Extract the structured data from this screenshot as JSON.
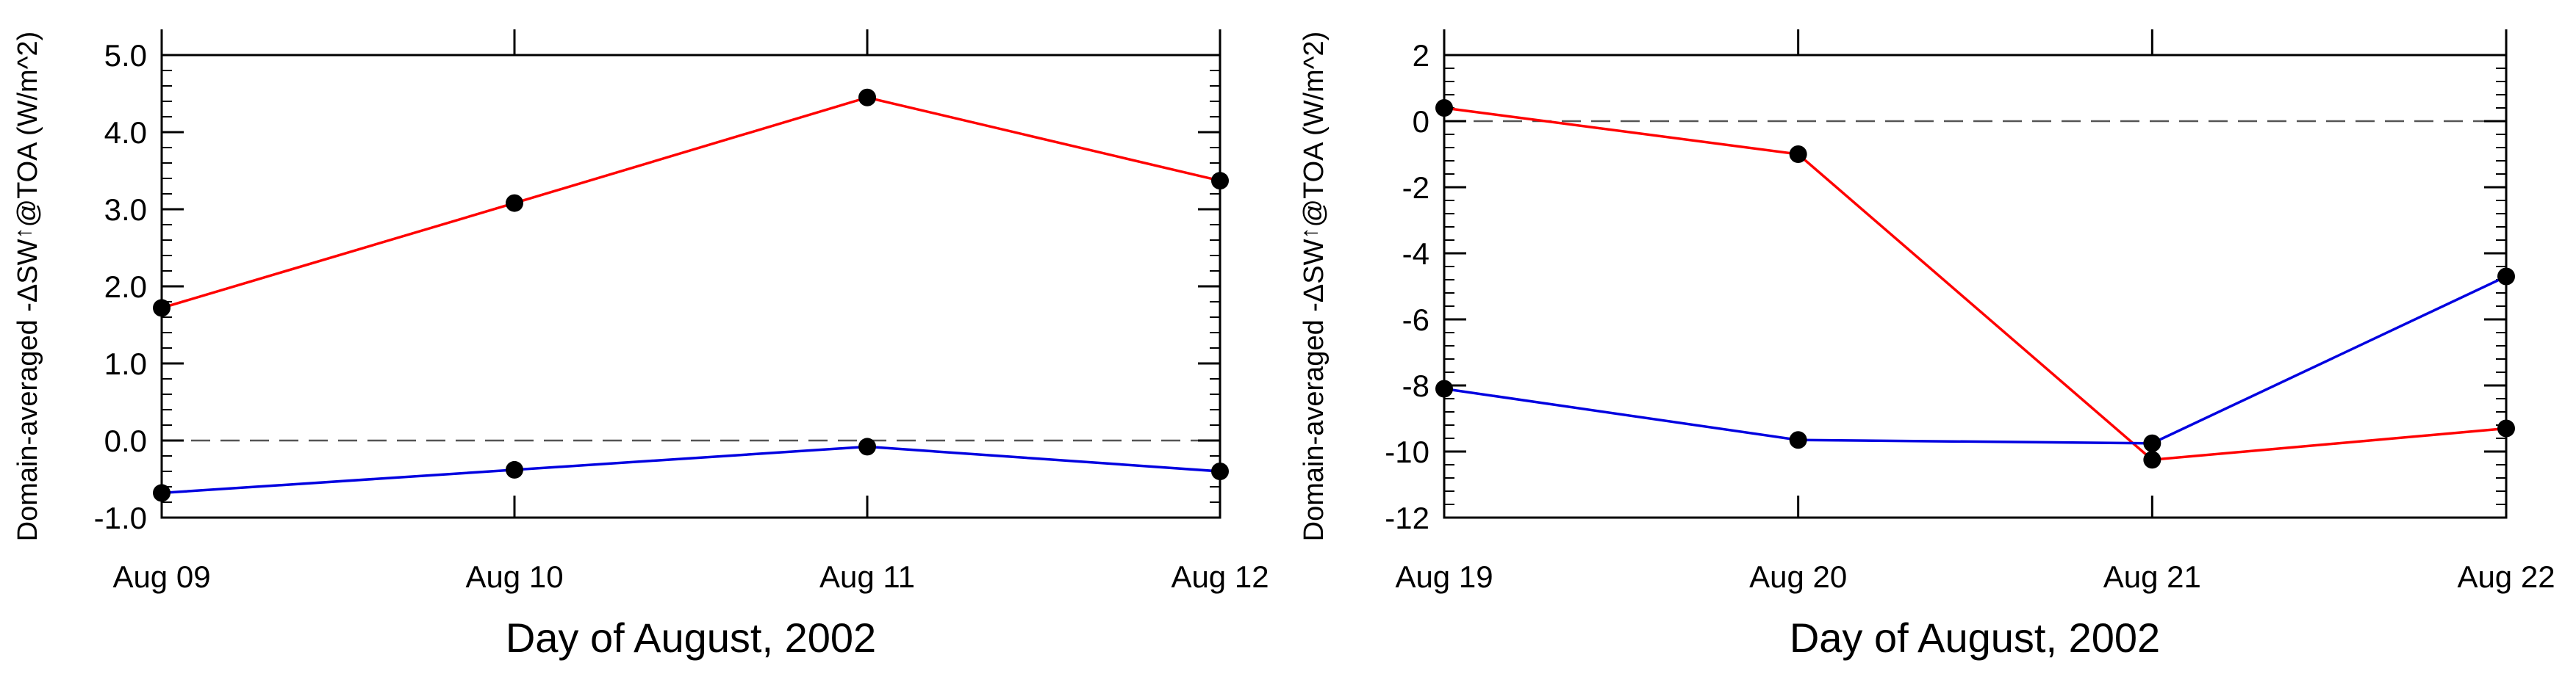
{
  "chart_data": [
    {
      "type": "line",
      "title": "",
      "xlabel": "Day of August, 2002",
      "ylabel_prefix": "Domain-averaged -ΔSW",
      "ylabel_arrow": "↑",
      "ylabel_suffix": "@TOA (W/m^2)",
      "categories": [
        "Aug 09",
        "Aug 10",
        "Aug 11",
        "Aug 12"
      ],
      "ylim": [
        -1.0,
        5.0
      ],
      "yticks": [
        -1.0,
        0.0,
        1.0,
        2.0,
        3.0,
        4.0,
        5.0
      ],
      "ytick_labels": [
        "-1.0",
        "0.0",
        "1.0",
        "2.0",
        "3.0",
        "4.0",
        "5.0"
      ],
      "minor_step": 0.2,
      "zero_line": 0.0,
      "series": [
        {
          "name": "red",
          "color": "#ff0000",
          "values": [
            1.72,
            3.08,
            4.45,
            3.37
          ]
        },
        {
          "name": "blue",
          "color": "#0000e0",
          "values": [
            -0.68,
            -0.38,
            -0.08,
            -0.4
          ]
        }
      ]
    },
    {
      "type": "line",
      "title": "",
      "xlabel": "Day of August, 2002",
      "ylabel_prefix": "Domain-averaged -ΔSW",
      "ylabel_arrow": "↑",
      "ylabel_suffix": "@TOA (W/m^2)",
      "categories": [
        "Aug 19",
        "Aug 20",
        "Aug 21",
        "Aug 22"
      ],
      "ylim": [
        -12,
        2
      ],
      "yticks": [
        -12,
        -10,
        -8,
        -6,
        -4,
        -2,
        0,
        2
      ],
      "ytick_labels": [
        "-12",
        "-10",
        "-8",
        "-6",
        "-4",
        "-2",
        "0",
        "2"
      ],
      "minor_step": 0.4,
      "zero_line": 0,
      "series": [
        {
          "name": "red",
          "color": "#ff0000",
          "values": [
            0.4,
            -1.0,
            -10.25,
            -9.3
          ]
        },
        {
          "name": "blue",
          "color": "#0000e0",
          "values": [
            -8.1,
            -9.65,
            -9.75,
            -4.7
          ]
        }
      ]
    }
  ]
}
